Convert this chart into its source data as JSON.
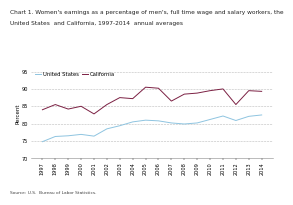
{
  "title_line1": "Chart 1. Women's earnings as a percentage of men's, full time wage and salary workers, the",
  "title_line2": "United States  and California, 1997-2014  annual averages",
  "ylabel": "Percent",
  "source": "Source: U.S.  Bureau of Labor Statistics.",
  "years": [
    1997,
    1998,
    1999,
    2000,
    2001,
    2002,
    2003,
    2004,
    2005,
    2006,
    2007,
    2008,
    2009,
    2010,
    2011,
    2012,
    2013,
    2014
  ],
  "us_data": [
    74.8,
    76.3,
    76.5,
    76.9,
    76.4,
    78.5,
    79.4,
    80.5,
    81.0,
    80.8,
    80.2,
    79.9,
    80.2,
    81.2,
    82.2,
    80.9,
    82.1,
    82.5
  ],
  "ca_data": [
    84.0,
    85.5,
    84.2,
    85.0,
    82.8,
    85.5,
    87.5,
    87.2,
    90.5,
    90.2,
    86.5,
    88.5,
    88.8,
    89.5,
    90.0,
    85.5,
    89.5,
    89.3
  ],
  "us_color": "#8ec4e0",
  "ca_color": "#7b2043",
  "ylim": [
    70,
    96
  ],
  "yticks": [
    70,
    75,
    80,
    85,
    90,
    95
  ],
  "ytick_labels": [
    "70",
    "75",
    "80",
    "85",
    "90",
    "95"
  ],
  "grid_color": "#bbbbbb",
  "bg_color": "#ffffff",
  "title_fontsize": 4.2,
  "label_fontsize": 4.0,
  "tick_fontsize": 3.6,
  "legend_fontsize": 3.8,
  "source_fontsize": 3.2
}
